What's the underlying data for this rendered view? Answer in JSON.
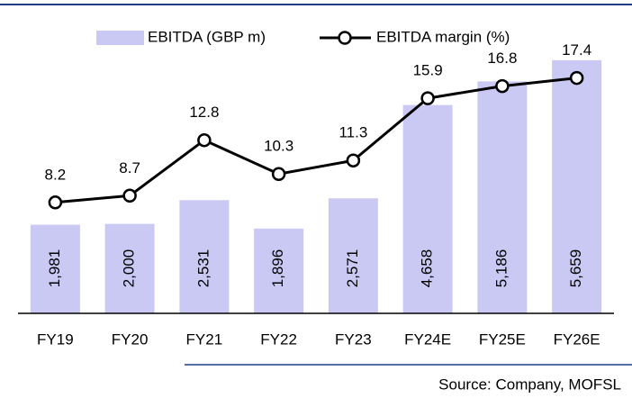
{
  "chart_data": {
    "type": "bar",
    "categories": [
      "FY19",
      "FY20",
      "FY21",
      "FY22",
      "FY23",
      "FY24E",
      "FY25E",
      "FY26E"
    ],
    "series": [
      {
        "name": "EBITDA (GBP m)",
        "type": "bar",
        "color": "#c9c9f3",
        "values": [
          1981,
          2000,
          2531,
          1896,
          2571,
          4658,
          5186,
          5659
        ],
        "value_labels": [
          "1,981",
          "2,000",
          "2,531",
          "1,896",
          "2,571",
          "4,658",
          "5,186",
          "5,659"
        ]
      },
      {
        "name": "EBITDA margin (%)",
        "type": "line",
        "axis": "y2",
        "color": "#000000",
        "values": [
          8.2,
          8.7,
          12.8,
          10.3,
          11.3,
          15.9,
          16.8,
          17.4
        ]
      }
    ],
    "ylim": [
      0,
      6200
    ],
    "y2lim": [
      0,
      20.5
    ],
    "source": "Source: Company, MOFSL"
  }
}
